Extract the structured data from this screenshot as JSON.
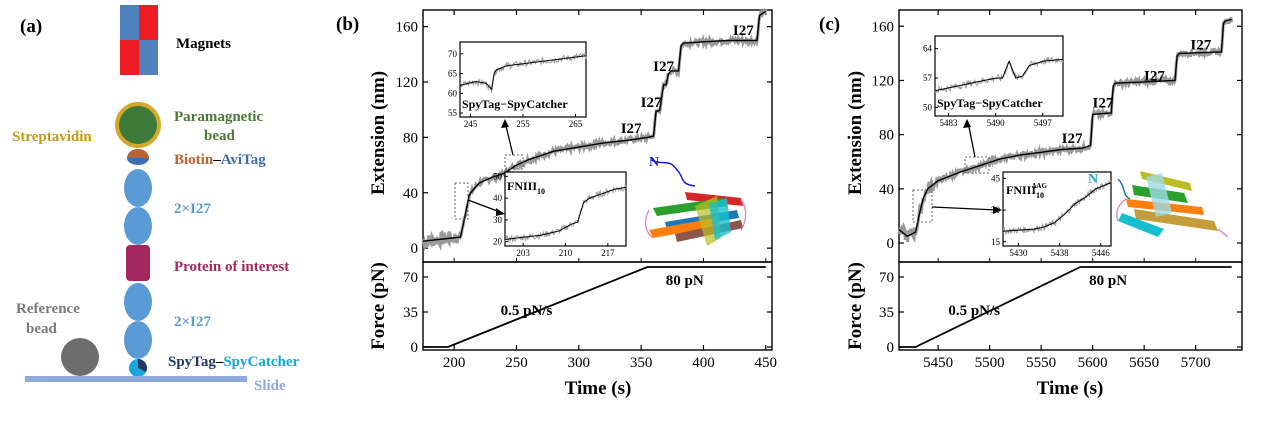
{
  "panel_a": {
    "label": "(a)",
    "magnets": "Magnets",
    "paramagnetic_bead": [
      "Paramagnetic",
      "bead"
    ],
    "streptavidin": "Streptavidin",
    "biotin": "Biotin",
    "dash": "–",
    "avitag": "AviTag",
    "i27_top": "2×I27",
    "protein": "Protein of interest",
    "i27_bottom": "2×I27",
    "reference_bead": [
      "Reference",
      "bead"
    ],
    "spytag": "SpyTag",
    "spycatcher": "SpyCatcher",
    "slide": "Slide",
    "colors": {
      "magnet_red": "#ee1c24",
      "magnet_blue": "#4f81bd",
      "bead_fill": "#3d7a3a",
      "bead_ring": "#d4a92a",
      "streptavidin_text": "#c79a12",
      "paramagnetic_text": "#4c7a36",
      "biotin": "#c0612b",
      "avitag": "#3e6eb0",
      "i27": "#5b9bd5",
      "protein": "#a3285e",
      "reference": "#6d6d6d",
      "spytag": "#1f3864",
      "spycatcher": "#18a5e0",
      "slide": "#8ea9db"
    }
  },
  "chart_data": [
    {
      "panel": "(b)",
      "type": "line",
      "title": "",
      "xlabel": "Time (s)",
      "ylabel_top": "Extension (nm)",
      "ylabel_bottom": "Force (pN)",
      "xlim": [
        175,
        455
      ],
      "ylim_top": [
        -10,
        172
      ],
      "ylim_bottom": [
        -3,
        85
      ],
      "xticks": [
        200,
        250,
        300,
        350,
        400,
        450
      ],
      "yticks_top": [
        0,
        40,
        80,
        120,
        160
      ],
      "yticks_bottom": [
        0,
        35,
        70
      ],
      "extension_series": {
        "name": "Extension",
        "x": [
          175,
          185,
          195,
          205,
          208,
          212,
          215,
          220,
          230,
          240,
          250,
          260,
          270,
          280,
          300,
          320,
          340,
          355,
          360,
          362,
          364,
          365,
          368,
          370,
          372,
          374,
          380,
          382,
          384,
          400,
          420,
          440,
          443,
          445,
          448,
          450
        ],
        "y": [
          5,
          6,
          7,
          8,
          20,
          38,
          42,
          47,
          51,
          54,
          60,
          64,
          67,
          70,
          73,
          76,
          78,
          80,
          81,
          99,
          99,
          100,
          118,
          118,
          126,
          128,
          128,
          146,
          148,
          149,
          150,
          150,
          150,
          168,
          170,
          171
        ]
      },
      "force_series": {
        "name": "Force",
        "x": [
          175,
          195,
          355,
          450
        ],
        "y": [
          0,
          0,
          80,
          80
        ]
      },
      "step_labels": [
        {
          "text": "I27",
          "x": 342,
          "y": 83
        },
        {
          "text": "I27",
          "x": 358,
          "y": 102
        },
        {
          "text": "I27",
          "x": 368,
          "y": 128
        },
        {
          "text": "I27",
          "x": 432,
          "y": 154
        }
      ],
      "force_annotations": [
        {
          "text": "0.5 pN/s",
          "x": 258,
          "y": 32
        },
        {
          "text": "80 pN",
          "x": 385,
          "y": 62
        }
      ],
      "insets": [
        {
          "label": "SpyTag−SpyCatcher",
          "xlim": [
            243,
            267
          ],
          "ylim": [
            54,
            73
          ],
          "xticks": [
            245,
            255,
            265
          ],
          "yticks": [
            55,
            60,
            65,
            70
          ],
          "x": [
            243,
            246,
            248,
            249,
            249.5,
            250,
            252,
            255,
            258,
            261,
            264,
            267
          ],
          "y": [
            62,
            63,
            62.5,
            61,
            65,
            66,
            67,
            67.5,
            68,
            68.5,
            69,
            69.5
          ]
        },
        {
          "label": "FNIII",
          "label_sub": "10",
          "label_sup": "",
          "xlim": [
            200,
            220
          ],
          "ylim": [
            18,
            52
          ],
          "xticks": [
            203,
            210,
            217
          ],
          "yticks": [
            20,
            30,
            40,
            50
          ],
          "x": [
            200,
            203,
            206,
            209,
            211,
            212,
            213,
            214,
            216,
            218,
            220
          ],
          "y": [
            21,
            22,
            23,
            25,
            28,
            29,
            38,
            40,
            42,
            44,
            45
          ]
        }
      ],
      "protein_label": "N"
    },
    {
      "panel": "(c)",
      "type": "line",
      "title": "",
      "xlabel": "Time (s)",
      "ylabel_top": "Extension (nm)",
      "ylabel_bottom": "Force (pN)",
      "xlim": [
        5412,
        5745
      ],
      "ylim_top": [
        -14,
        172
      ],
      "ylim_bottom": [
        -3,
        85
      ],
      "xticks": [
        5450,
        5500,
        5550,
        5600,
        5650,
        5700
      ],
      "yticks_top": [
        0,
        40,
        80,
        120,
        160
      ],
      "yticks_bottom": [
        0,
        35,
        70
      ],
      "extension_series": {
        "name": "Extension",
        "x": [
          5412,
          5420,
          5428,
          5432,
          5436,
          5440,
          5450,
          5470,
          5490,
          5510,
          5530,
          5550,
          5570,
          5590,
          5598,
          5600,
          5618,
          5620,
          5622,
          5680,
          5682,
          5684,
          5725,
          5727,
          5729,
          5735
        ],
        "y": [
          10,
          5,
          8,
          22,
          34,
          40,
          46,
          52,
          57,
          62,
          65,
          67,
          69,
          70,
          72,
          95,
          96,
          116,
          118,
          120,
          138,
          140,
          141,
          162,
          164,
          165
        ]
      },
      "force_series": {
        "name": "Force",
        "x": [
          5412,
          5428,
          5588,
          5735
        ],
        "y": [
          0,
          0,
          80,
          80
        ]
      },
      "step_labels": [
        {
          "text": "I27",
          "x": 5580,
          "y": 74
        },
        {
          "text": "I27",
          "x": 5610,
          "y": 100
        },
        {
          "text": "I27",
          "x": 5660,
          "y": 120
        },
        {
          "text": "I27",
          "x": 5705,
          "y": 143
        }
      ],
      "force_annotations": [
        {
          "text": "0.5 pN/s",
          "x": 5485,
          "y": 32
        },
        {
          "text": "80 pN",
          "x": 5615,
          "y": 62
        }
      ],
      "insets": [
        {
          "label": "SpyTag−SpyCatcher",
          "xlim": [
            5481,
            5500
          ],
          "ylim": [
            48,
            67
          ],
          "xticks": [
            5483,
            5490,
            5497
          ],
          "yticks": [
            50,
            57,
            64
          ],
          "x": [
            5481,
            5484,
            5487,
            5490,
            5491,
            5492,
            5493,
            5494,
            5495,
            5497,
            5500
          ],
          "y": [
            54,
            55,
            56,
            57,
            57,
            61,
            57,
            57.5,
            60,
            61,
            61.5
          ]
        },
        {
          "label": "FNIII",
          "label_sub": "10",
          "label_sup": "ΔAG",
          "xlim": [
            5427,
            5448
          ],
          "ylim": [
            13,
            48
          ],
          "xticks": [
            5430,
            5438,
            5446
          ],
          "yticks": [
            15,
            30,
            45
          ],
          "x": [
            5427,
            5430,
            5433,
            5435,
            5437,
            5439,
            5441,
            5443,
            5445,
            5448
          ],
          "y": [
            20,
            20.5,
            21,
            22,
            24,
            28,
            33,
            36,
            40,
            43
          ]
        }
      ],
      "protein_label": "N"
    }
  ]
}
